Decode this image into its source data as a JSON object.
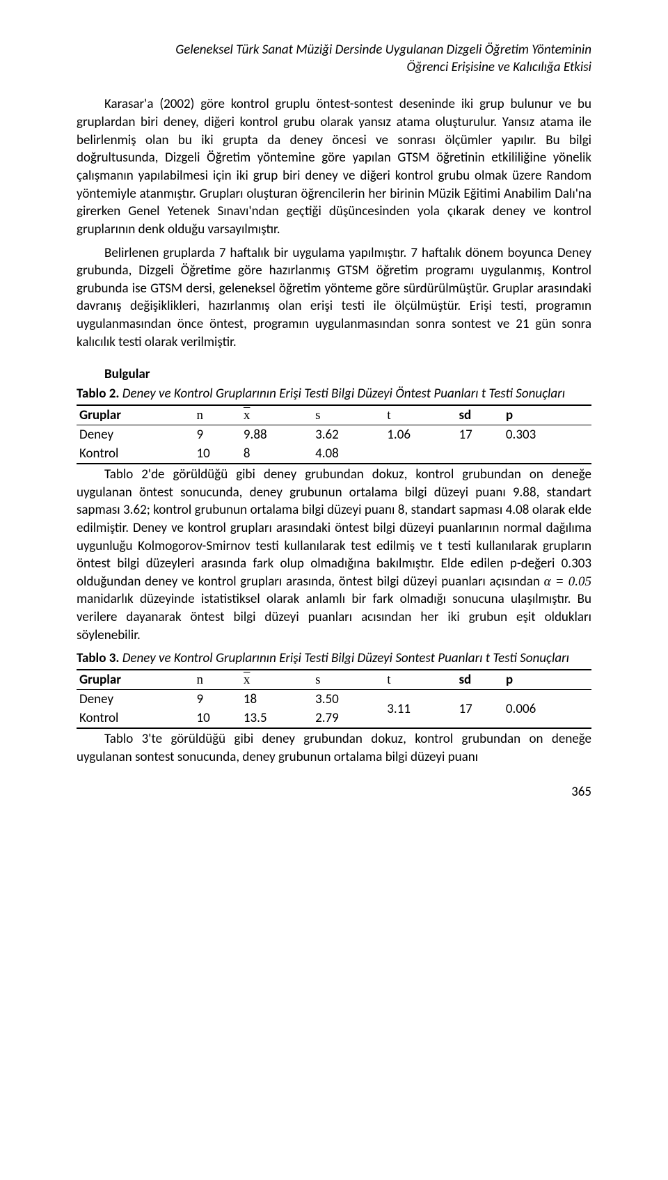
{
  "colors": {
    "text": "#000000",
    "bg": "#ffffff",
    "rule": "#000000"
  },
  "font": {
    "body": "Calibri",
    "math": "Times New Roman",
    "size_pt": 14
  },
  "header": {
    "line1": "Geleneksel Türk Sanat Müziği Dersinde Uygulanan Dizgeli Öğretim Yönteminin",
    "line2": "Öğrenci Erişisine ve Kalıcılığa Etkisi"
  },
  "para1_pre": "Karasar'a (2002) göre kontrol gruplu öntest-sontest deseninde iki grup bulunur ve bu gruplardan biri deney, diğeri kontrol grubu olarak yansız atama oluşturulur. Yansız atama ile belirlenmiş olan bu iki grupta da deney öncesi ve sonrası ölçümler yapılır. Bu bilgi doğrultusunda, Dizgeli Öğretim yöntemine göre yapılan GTSM öğretinin etkililiğine yönelik çalışmanın yapılabilmesi için iki grup biri deney ve diğeri kontrol grubu olmak üzere Random yöntemiyle atanmıştır. Grupları oluşturan öğrencilerin her birinin Müzik Eğitimi Anabilim Dalı'na girerken Genel Yetenek Sınavı'ndan geçtiği düşüncesinden yola çıkarak deney ve kontrol gruplarının denk olduğu varsayılmıştır.",
  "para2": "Belirlenen gruplarda 7 haftalık bir uygulama yapılmıştır. 7 haftalık dönem boyunca Deney grubunda, Dizgeli Öğretime göre hazırlanmış GTSM öğretim programı uygulanmış, Kontrol grubunda ise GTSM dersi, geleneksel öğretim yönteme göre sürdürülmüştür. Gruplar arasındaki davranış değişiklikleri, hazırlanmış olan erişi testi ile ölçülmüştür. Erişi testi, programın uygulanmasından önce öntest, programın uygulanmasından sonra sontest ve 21 gün sonra kalıcılık testi olarak verilmiştir.",
  "section_findings": "Bulgular",
  "table2": {
    "label": "Tablo 2.",
    "title": " Deney ve Kontrol Gruplarının Erişi Testi Bilgi Düzeyi Öntest Puanları t Testi Sonuçları",
    "headers": {
      "gruplar": "Gruplar",
      "n": "n",
      "xbar": "x",
      "s": "s",
      "t": "t",
      "sd": "sd",
      "p": "p"
    },
    "rows": [
      {
        "grup": "Deney",
        "n": "9",
        "xbar": "9.88",
        "s": "3.62",
        "t": "1.06",
        "sd": "17",
        "p": "0.303"
      },
      {
        "grup": "Kontrol",
        "n": "10",
        "xbar": "8",
        "s": "4.08",
        "t": "",
        "sd": "",
        "p": ""
      }
    ]
  },
  "para3_a": "Tablo 2'de görüldüğü gibi deney grubundan dokuz, kontrol grubundan on deneğe uygulanan öntest sonucunda, deney grubunun ortalama bilgi düzeyi puanı 9.88, standart sapması 3.62; kontrol grubunun ortalama bilgi düzeyi puanı 8, standart sapması 4.08 olarak elde edilmiştir. Deney ve kontrol grupları arasındaki öntest bilgi düzeyi puanlarının normal dağılıma uygunluğu Kolmogorov-Smirnov testi kullanılarak test edilmiş ve t testi kullanılarak grupların öntest bilgi düzeyleri arasında fark olup olmadığına bakılmıştır. Elde edilen p-değeri 0.303 olduğundan deney ve kontrol grupları arasında, öntest bilgi düzeyi puanları açısından ",
  "alpha_expr": "α = 0.05",
  "para3_b": " manidarlık düzeyinde istatistiksel olarak anlamlı bir fark olmadığı sonucuna ulaşılmıştır. Bu verilere dayanarak öntest bilgi düzeyi puanları acısından her iki grubun eşit oldukları söylenebilir.",
  "table3": {
    "label": "Tablo 3.",
    "title": " Deney ve Kontrol Gruplarının Erişi Testi Bilgi Düzeyi Sontest Puanları t Testi Sonuçları",
    "headers": {
      "gruplar": "Gruplar",
      "n": "n",
      "xbar": "x",
      "s": "s",
      "t": "t",
      "sd": "sd",
      "p": "p"
    },
    "rows": [
      {
        "grup": "Deney",
        "n": "9",
        "xbar": "18",
        "s": "3.50",
        "t": "3.11",
        "sd": "17",
        "p": "0.006"
      },
      {
        "grup": "Kontrol",
        "n": "10",
        "xbar": "13.5",
        "s": "2.79",
        "t": "",
        "sd": "",
        "p": ""
      }
    ]
  },
  "para4": "Tablo 3'te görüldüğü gibi deney grubundan dokuz, kontrol grubundan on deneğe uygulanan sontest sonucunda, deney grubunun ortalama bilgi düzeyi puanı",
  "pagenum": "365"
}
